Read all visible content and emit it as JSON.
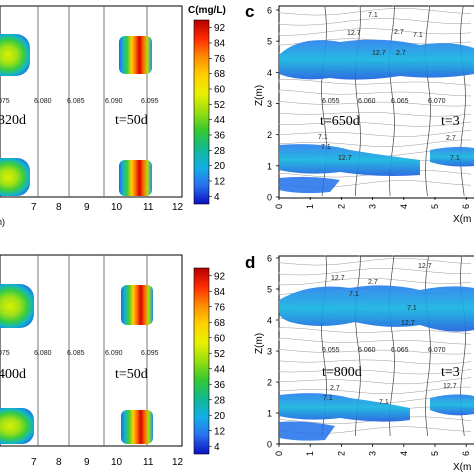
{
  "figure": {
    "panel_letters": [
      "c",
      "d"
    ],
    "colorbar_label": "C(mg/L)"
  },
  "chart_data": [
    {
      "type": "heatmap",
      "panel": "top-left",
      "xticks": [
        "7",
        "8",
        "9",
        "10",
        "11",
        "12"
      ],
      "x_partial_label": "n)",
      "colorbar_ticks": [
        "92",
        "84",
        "76",
        "68",
        "60",
        "52",
        "44",
        "36",
        "28",
        "20",
        "12",
        "4"
      ],
      "contour_labels": [
        "075",
        "6.080",
        "6.085",
        "6.090",
        "6.095"
      ],
      "annotations": [
        "320d",
        "t=50d"
      ]
    },
    {
      "type": "heatmap",
      "panel": "c",
      "ylabel": "Z(m)",
      "xlabel_partial": "X(m",
      "yticks": [
        "0",
        "1",
        "2",
        "3",
        "4",
        "5",
        "6"
      ],
      "xticks": [
        "0",
        "1",
        "2",
        "3",
        "4",
        "5",
        "6"
      ],
      "contour_labels": [
        "6.055",
        "6.060",
        "6.065",
        "6.070"
      ],
      "annotations": [
        "t=650d",
        "t=3"
      ],
      "small_labels": [
        "7.1",
        "12.7",
        "2.7",
        "7.1",
        "12.7",
        "2.7",
        "7.1",
        "7.1",
        "12.7",
        "2.7",
        "7.1"
      ]
    },
    {
      "type": "heatmap",
      "panel": "bottom-left",
      "xticks": [
        "7",
        "8",
        "9",
        "10",
        "11",
        "12"
      ],
      "colorbar_ticks": [
        "92",
        "84",
        "76",
        "68",
        "60",
        "52",
        "44",
        "36",
        "28",
        "20",
        "12",
        "4"
      ],
      "contour_labels": [
        "075",
        "6.080",
        "6.085",
        "6.090",
        "6.095"
      ],
      "annotations": [
        "400d",
        "t=50d"
      ]
    },
    {
      "type": "heatmap",
      "panel": "d",
      "ylabel": "Z(m)",
      "xlabel_partial": "X(m",
      "yticks": [
        "0",
        "1",
        "2",
        "3",
        "4",
        "5",
        "6"
      ],
      "xticks": [
        "0",
        "1",
        "2",
        "3",
        "4",
        "5",
        "6"
      ],
      "contour_labels": [
        "6.055",
        "6.060",
        "6.065",
        "6.070"
      ],
      "annotations": [
        "t=800d",
        "t=3"
      ],
      "small_labels": [
        "12.7",
        "2.7",
        "7.1",
        "12.7",
        "7.1",
        "12.7",
        "2.7",
        "7.1",
        "7.1",
        "12.7"
      ]
    }
  ],
  "colors": {
    "scale": [
      "#b00000",
      "#e82020",
      "#ff6a00",
      "#ffb000",
      "#f5e800",
      "#b8e000",
      "#50d020",
      "#10b890",
      "#10b0e0",
      "#1e78f0",
      "#1440d8",
      "#0a10c0"
    ]
  }
}
